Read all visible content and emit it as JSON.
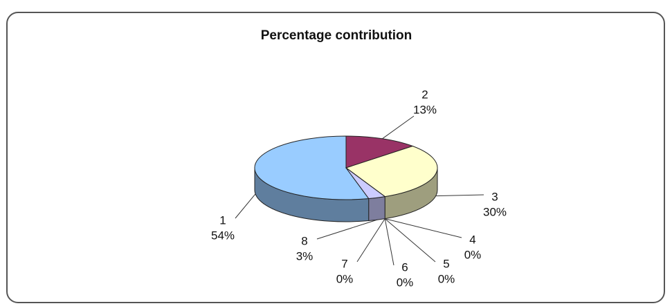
{
  "chart_data": {
    "type": "pie3d",
    "title": "Percentage contribution",
    "categories": [
      "1",
      "2",
      "3",
      "4",
      "5",
      "6",
      "7",
      "8"
    ],
    "values": [
      54,
      13,
      30,
      0,
      0,
      0,
      0,
      3
    ],
    "value_labels": [
      "54%",
      "13%",
      "30%",
      "0%",
      "0%",
      "0%",
      "0%",
      "3%"
    ],
    "colors": [
      "#99ccff",
      "#993366",
      "#ffffcc",
      "#ccffff",
      "#660066",
      "#ff8080",
      "#0066cc",
      "#ccccff"
    ]
  }
}
